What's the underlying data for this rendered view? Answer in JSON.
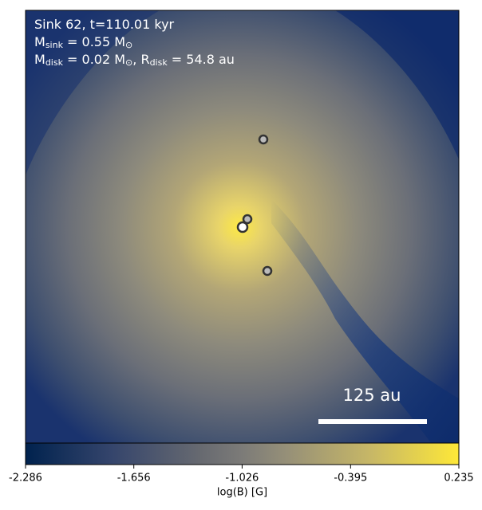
{
  "chart_data": {
    "type": "heatmap",
    "annotations": [
      [
        {
          "t": "Sink 62, t=110.01 kyr"
        }
      ],
      [
        {
          "t": "M"
        },
        {
          "t": "sink",
          "sub": true
        },
        {
          "t": " = 0.55 M"
        },
        {
          "t": "⊙",
          "sub": true
        }
      ],
      [
        {
          "t": "M"
        },
        {
          "t": "disk",
          "sub": true
        },
        {
          "t": " = 0.02 M"
        },
        {
          "t": "⊙",
          "sub": true
        },
        {
          "t": ", R"
        },
        {
          "t": "disk",
          "sub": true
        },
        {
          "t": " = 54.8 au"
        }
      ]
    ],
    "scalebar_label": "125 au",
    "colormap": "cividis",
    "clabel": "log(B) [G]",
    "clim": [
      -2.286,
      0.235
    ],
    "cticks": [
      -2.286,
      -1.656,
      -1.026,
      -0.395,
      0.235
    ]
  }
}
